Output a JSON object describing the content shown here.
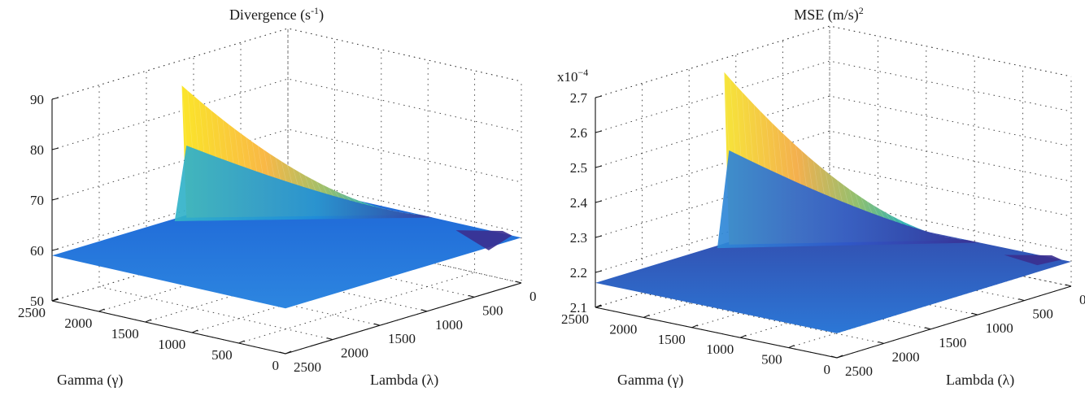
{
  "chart_data": [
    {
      "type": "surface",
      "title_main": "Divergence (s",
      "title_sup": "-1",
      "title_end": ")",
      "zlabel_prefix": "",
      "xlabel": "Lambda (λ)",
      "ylabel": "Gamma (γ)",
      "xlim": [
        0,
        2500
      ],
      "ylim": [
        0,
        2500
      ],
      "zlim": [
        50,
        90
      ],
      "x_ticks": [
        "0",
        "500",
        "1000",
        "1500",
        "2000",
        "2500"
      ],
      "y_ticks": [
        "0",
        "500",
        "1000",
        "1500",
        "2000",
        "2500"
      ],
      "z_ticks": [
        "50",
        "60",
        "70",
        "80",
        "90"
      ],
      "grid": true,
      "colormap": [
        "#352a87",
        "#0f5cdd",
        "#1481d6",
        "#06a4ca",
        "#2eb7a4",
        "#87bf77",
        "#d1bb59",
        "#fec832",
        "#f9fb0e"
      ],
      "surface": {
        "flat_value": 59,
        "peak_value": 85,
        "peak_at": {
          "lambda": 0,
          "gamma": 0
        },
        "dip_value": 55,
        "dip_at": {
          "lambda": 0,
          "gamma": 2500
        }
      }
    },
    {
      "type": "surface",
      "title_main": "MSE (m/s)",
      "title_sup": "2",
      "title_end": "",
      "zlabel_prefix": "x10",
      "zlabel_exp": "−4",
      "xlabel": "Lambda (λ)",
      "ylabel": "Gamma (γ)",
      "xlim": [
        0,
        2500
      ],
      "ylim": [
        0,
        2500
      ],
      "zlim": [
        2.1,
        2.7
      ],
      "x_ticks": [
        "0",
        "500",
        "1000",
        "1500",
        "2000",
        "2500"
      ],
      "y_ticks": [
        "0",
        "500",
        "1000",
        "1500",
        "2000",
        "2500"
      ],
      "z_ticks": [
        "2.1",
        "2.2",
        "2.3",
        "2.4",
        "2.5",
        "2.6",
        "2.7"
      ],
      "grid": true,
      "colormap": [
        "#352a87",
        "#0f5cdd",
        "#1481d6",
        "#06a4ca",
        "#2eb7a4",
        "#87bf77",
        "#d1bb59",
        "#fec832",
        "#f9fb0e"
      ],
      "surface": {
        "flat_value": 2.17,
        "peak_value": 2.66,
        "peak_at": {
          "lambda": 0,
          "gamma": 0
        },
        "dip_value": 2.14,
        "dip_at": {
          "lambda": 0,
          "gamma": 2500
        }
      }
    }
  ]
}
